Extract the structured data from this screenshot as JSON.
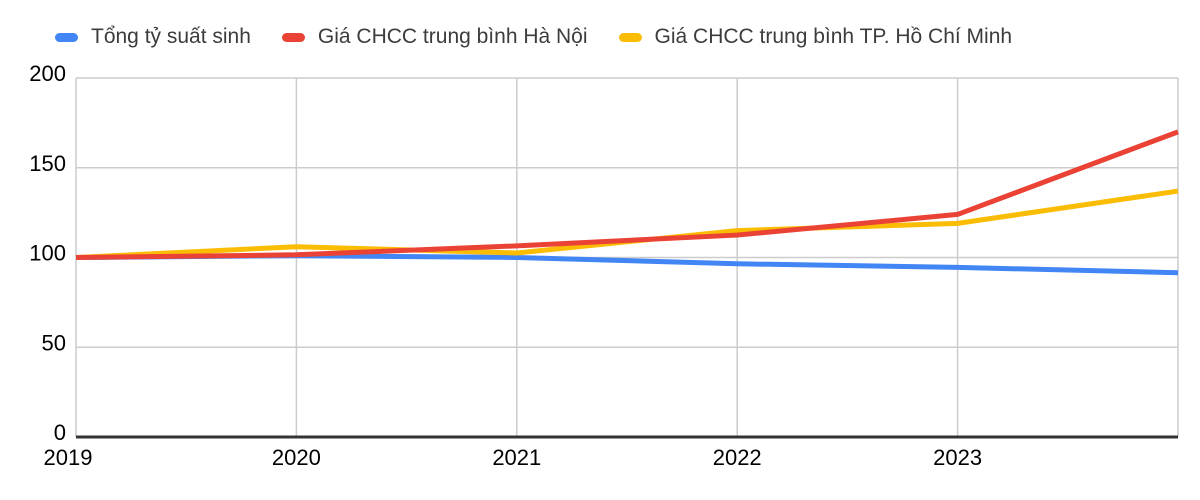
{
  "chart_data": {
    "type": "line",
    "title": "",
    "xlabel": "",
    "ylabel": "",
    "x": [
      2019,
      2020,
      2021,
      2022,
      2023,
      2024
    ],
    "x_tick_labels": [
      "2019",
      "2020",
      "2021",
      "2022",
      "2023"
    ],
    "y_ticks": [
      0,
      50,
      100,
      150,
      200
    ],
    "ylim": [
      0,
      200
    ],
    "xlim": [
      2019,
      2024
    ],
    "grid": true,
    "legend_position": "top",
    "series": [
      {
        "name": "Tổng tỷ suất sinh",
        "color": "#4285F4",
        "values": [
          100,
          101,
          100,
          96.5,
          94.5,
          91.5
        ]
      },
      {
        "name": "Giá CHCC trung bình Hà Nội",
        "color": "#EA4335",
        "values": [
          100,
          101.5,
          106.5,
          112.5,
          124,
          170
        ]
      },
      {
        "name": "Giá CHCC trung bình TP. Hồ Chí Minh",
        "color": "#FBBC04",
        "values": [
          100,
          106,
          102.5,
          115,
          119,
          137
        ]
      }
    ]
  },
  "colors": {
    "grid": "#cccccc",
    "axis_line": "#333333",
    "tick_text": "#000000",
    "legend_text": "#3c3c3c",
    "background": "#ffffff"
  }
}
